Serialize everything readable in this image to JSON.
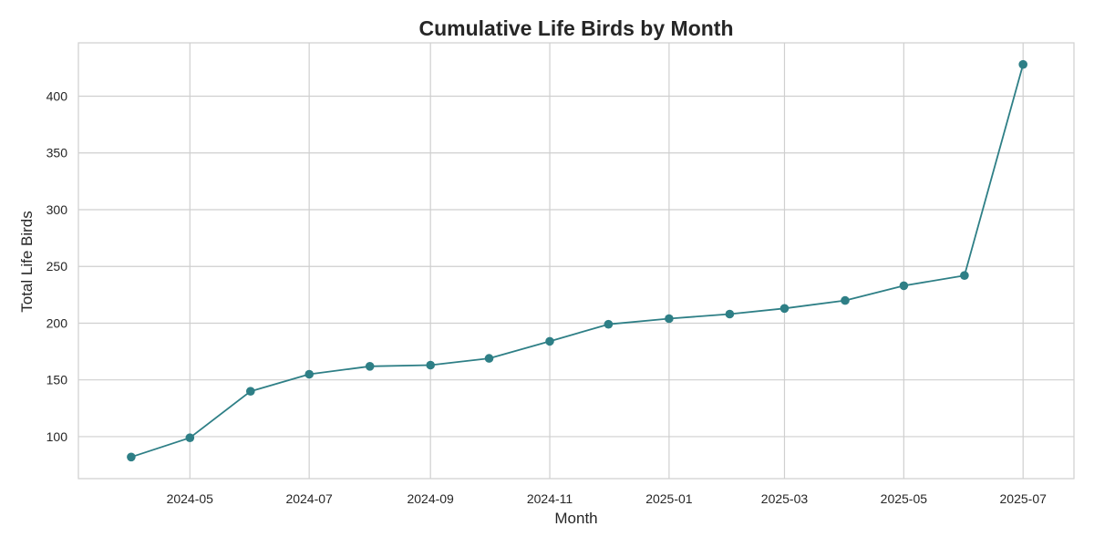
{
  "chart_data": {
    "type": "line",
    "title": "Cumulative Life Birds by Month",
    "xlabel": "Month",
    "ylabel": "Total Life Birds",
    "x": [
      "2024-04",
      "2024-05",
      "2024-06",
      "2024-07",
      "2024-08",
      "2024-09",
      "2024-10",
      "2024-11",
      "2024-12",
      "2025-01",
      "2025-02",
      "2025-03",
      "2025-04",
      "2025-05",
      "2025-06",
      "2025-07"
    ],
    "series": [
      {
        "values": [
          82,
          99,
          140,
          155,
          162,
          163,
          169,
          184,
          199,
          204,
          208,
          213,
          220,
          233,
          242,
          428
        ]
      }
    ],
    "xticks": [
      "2024-05",
      "2024-07",
      "2024-09",
      "2024-11",
      "2025-01",
      "2025-03",
      "2025-05",
      "2025-07"
    ],
    "yticks": [
      100,
      150,
      200,
      250,
      300,
      350,
      400
    ],
    "xlim": [
      "2024-03-05",
      "2025-07-27"
    ],
    "ylim": [
      63,
      447
    ],
    "grid": true,
    "legend": "none",
    "colors": {
      "line": "#2e7f86",
      "marker": "#2e7f86",
      "grid": "#cfcfcf",
      "text": "#262626"
    }
  }
}
